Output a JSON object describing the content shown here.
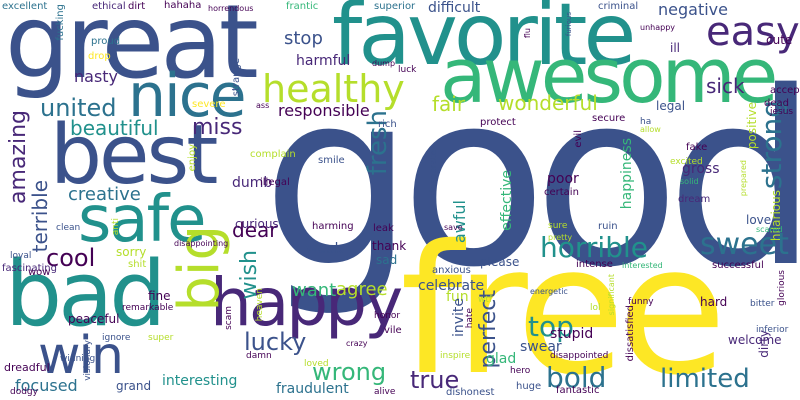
{
  "palette": {
    "navy": "#3b528b",
    "dark_purple": "#440154",
    "purple": "#482878",
    "teal": "#21918c",
    "blue_teal": "#2c728e",
    "green": "#35b779",
    "light_green": "#6ece58",
    "lime": "#b5de2b",
    "yellow": "#fde725"
  },
  "words": [
    {
      "text": "good",
      "color": "#3b528b"
    },
    {
      "text": "free",
      "color": "#fde725"
    },
    {
      "text": "great",
      "color": "#3b528b"
    },
    {
      "text": "favorite",
      "color": "#21918c"
    },
    {
      "text": "awesome",
      "color": "#35b779"
    },
    {
      "text": "best",
      "color": "#3b528b"
    },
    {
      "text": "nice",
      "color": "#2c728e"
    },
    {
      "text": "bad",
      "color": "#21918c"
    },
    {
      "text": "happy",
      "color": "#482878"
    },
    {
      "text": "safe",
      "color": "#21918c"
    },
    {
      "text": "big",
      "color": "#b5de2b"
    },
    {
      "text": "win",
      "color": "#3b528b"
    },
    {
      "text": "easy",
      "color": "#482878"
    },
    {
      "text": "healthy",
      "color": "#b5de2b"
    },
    {
      "text": "sweet",
      "color": "#2c728e"
    },
    {
      "text": "horrible",
      "color": "#21918c"
    },
    {
      "text": "cool",
      "color": "#440154"
    },
    {
      "text": "united",
      "color": "#2c728e"
    },
    {
      "text": "beautiful",
      "color": "#21918c"
    },
    {
      "text": "miss",
      "color": "#482878"
    },
    {
      "text": "amazing",
      "color": "#482878"
    },
    {
      "text": "wonderful",
      "color": "#b5de2b"
    },
    {
      "text": "fair",
      "color": "#b5de2b"
    },
    {
      "text": "limited",
      "color": "#2c728e"
    },
    {
      "text": "bold",
      "color": "#2c728e"
    },
    {
      "text": "top",
      "color": "#21918c"
    },
    {
      "text": "true",
      "color": "#482878"
    },
    {
      "text": "lucky",
      "color": "#3b528b"
    },
    {
      "text": "wrong",
      "color": "#35b779"
    },
    {
      "text": "strong",
      "color": "#2c728e"
    },
    {
      "text": "fresh",
      "color": "#2c728e"
    },
    {
      "text": "wish",
      "color": "#21918c"
    },
    {
      "text": "perfect",
      "color": "#3b528b"
    },
    {
      "text": "creative",
      "color": "#2c728e"
    },
    {
      "text": "dear",
      "color": "#440154"
    },
    {
      "text": "terrible",
      "color": "#3b528b"
    },
    {
      "text": "sick",
      "color": "#482878"
    },
    {
      "text": "stop",
      "color": "#3b528b"
    },
    {
      "text": "negative",
      "color": "#3b528b"
    },
    {
      "text": "nasty",
      "color": "#482878"
    },
    {
      "text": "difficult",
      "color": "#3b528b"
    },
    {
      "text": "want",
      "color": "#35b779"
    },
    {
      "text": "agree",
      "color": "#b5de2b"
    },
    {
      "text": "interesting",
      "color": "#21918c"
    },
    {
      "text": "focused",
      "color": "#2c728e"
    },
    {
      "text": "fraudulent",
      "color": "#2c728e"
    },
    {
      "text": "harmful",
      "color": "#482878"
    },
    {
      "text": "responsible",
      "color": "#440154"
    },
    {
      "text": "celebrate",
      "color": "#3b528b"
    },
    {
      "text": "weak",
      "color": "#3b528b"
    },
    {
      "text": "poor",
      "color": "#440154"
    },
    {
      "text": "awful",
      "color": "#21918c"
    },
    {
      "text": "gross",
      "color": "#482878"
    },
    {
      "text": "happiness",
      "color": "#35b779"
    },
    {
      "text": "positive",
      "color": "#b5de2b"
    },
    {
      "text": "love",
      "color": "#3b528b"
    },
    {
      "text": "fun",
      "color": "#b5de2b"
    },
    {
      "text": "hard",
      "color": "#440154"
    },
    {
      "text": "welcome",
      "color": "#482878"
    },
    {
      "text": "stupid",
      "color": "#440154"
    },
    {
      "text": "swear",
      "color": "#3b528b"
    },
    {
      "text": "glad",
      "color": "#35b779"
    },
    {
      "text": "invite",
      "color": "#3b528b"
    },
    {
      "text": "effective",
      "color": "#35b779"
    },
    {
      "text": "peaceful",
      "color": "#440154"
    },
    {
      "text": "fine",
      "color": "#440154"
    },
    {
      "text": "grand",
      "color": "#3b528b"
    },
    {
      "text": "dumb",
      "color": "#482878"
    },
    {
      "text": "curious",
      "color": "#482878"
    },
    {
      "text": "sorry",
      "color": "#b5de2b"
    },
    {
      "text": "thank",
      "color": "#440154"
    },
    {
      "text": "sad",
      "color": "#2c728e"
    },
    {
      "text": "please",
      "color": "#3b528b"
    },
    {
      "text": "legal",
      "color": "#3b528b"
    },
    {
      "text": "ill",
      "color": "#482878"
    },
    {
      "text": "cute",
      "color": "#440154"
    },
    {
      "text": "proud",
      "color": "#2c728e"
    },
    {
      "text": "excellent",
      "color": "#2c728e"
    },
    {
      "text": "ethical",
      "color": "#482878"
    },
    {
      "text": "dirt",
      "color": "#440154"
    },
    {
      "text": "hahaha",
      "color": "#440154"
    },
    {
      "text": "frantic",
      "color": "#35b779"
    },
    {
      "text": "superior",
      "color": "#2c728e"
    },
    {
      "text": "criminal",
      "color": "#3b528b"
    },
    {
      "text": "fucking",
      "color": "#2c728e"
    },
    {
      "text": "strange",
      "color": "#3b528b"
    },
    {
      "text": "enjoy",
      "color": "#b5de2b"
    },
    {
      "text": "rich",
      "color": "#3b528b"
    },
    {
      "text": "protect",
      "color": "#440154"
    },
    {
      "text": "secure",
      "color": "#440154"
    },
    {
      "text": "fake",
      "color": "#440154"
    },
    {
      "text": "dream",
      "color": "#482878"
    },
    {
      "text": "ruin",
      "color": "#3b528b"
    },
    {
      "text": "certain",
      "color": "#440154"
    },
    {
      "text": "anxious",
      "color": "#3b528b"
    },
    {
      "text": "intense",
      "color": "#440154"
    },
    {
      "text": "successful",
      "color": "#440154"
    },
    {
      "text": "dirty",
      "color": "#482878"
    },
    {
      "text": "hilarious",
      "color": "#b5de2b"
    },
    {
      "text": "accept",
      "color": "#440154"
    },
    {
      "text": "dead",
      "color": "#440154"
    },
    {
      "text": "evil",
      "color": "#440154"
    },
    {
      "text": "leak",
      "color": "#440154"
    },
    {
      "text": "harming",
      "color": "#440154"
    },
    {
      "text": "illegal",
      "color": "#440154"
    },
    {
      "text": "smile",
      "color": "#3b528b"
    },
    {
      "text": "complain",
      "color": "#b5de2b"
    },
    {
      "text": "severe",
      "color": "#fde725"
    },
    {
      "text": "drop",
      "color": "#fde725"
    },
    {
      "text": "fascinating",
      "color": "#482878"
    },
    {
      "text": "loyal",
      "color": "#3b528b"
    },
    {
      "text": "clean",
      "color": "#3b528b"
    },
    {
      "text": "anti",
      "color": "#b5de2b"
    },
    {
      "text": "shit",
      "color": "#b5de2b"
    },
    {
      "text": "wow",
      "color": "#440154"
    },
    {
      "text": "vile",
      "color": "#440154"
    },
    {
      "text": "honor",
      "color": "#440154"
    },
    {
      "text": "huge",
      "color": "#3b528b"
    },
    {
      "text": "hero",
      "color": "#440154"
    },
    {
      "text": "dissatisfied",
      "color": "#440154"
    },
    {
      "text": "dishonest",
      "color": "#3b528b"
    },
    {
      "text": "alive",
      "color": "#440154"
    },
    {
      "text": "fantastic",
      "color": "#440154"
    },
    {
      "text": "disappointed",
      "color": "#440154"
    },
    {
      "text": "inspire",
      "color": "#b5de2b"
    },
    {
      "text": "loved",
      "color": "#b5de2b"
    },
    {
      "text": "damn",
      "color": "#440154"
    },
    {
      "text": "scam",
      "color": "#440154"
    },
    {
      "text": "super",
      "color": "#b5de2b"
    },
    {
      "text": "dreadful",
      "color": "#440154"
    },
    {
      "text": "visionary",
      "color": "#3b528b"
    },
    {
      "text": "ignore",
      "color": "#3b528b"
    },
    {
      "text": "remarkable",
      "color": "#440154"
    },
    {
      "text": "heaven",
      "color": "#b5de2b"
    },
    {
      "text": "dodgy",
      "color": "#440154"
    },
    {
      "text": "winning",
      "color": "#3b528b"
    },
    {
      "text": "disappointing",
      "color": "#440154"
    },
    {
      "text": "hate",
      "color": "#440154"
    },
    {
      "text": "wtf",
      "color": "#b5de2b"
    },
    {
      "text": "funny",
      "color": "#440154"
    },
    {
      "text": "bitter",
      "color": "#3b528b"
    },
    {
      "text": "inferior",
      "color": "#3b528b"
    },
    {
      "text": "glorious",
      "color": "#440154"
    },
    {
      "text": "jesus",
      "color": "#440154"
    },
    {
      "text": "lol",
      "color": "#b5de2b"
    },
    {
      "text": "significant",
      "color": "#b5de2b"
    },
    {
      "text": "energetic",
      "color": "#3b528b"
    },
    {
      "text": "interested",
      "color": "#35b779"
    },
    {
      "text": "scared",
      "color": "#35b779"
    },
    {
      "text": "desperate",
      "color": "#3b528b"
    },
    {
      "text": "save",
      "color": "#440154"
    },
    {
      "text": "sure",
      "color": "#b5de2b"
    },
    {
      "text": "pretty",
      "color": "#b5de2b"
    },
    {
      "text": "excited",
      "color": "#b5de2b"
    },
    {
      "text": "solid",
      "color": "#35b779"
    },
    {
      "text": "prepared",
      "color": "#b5de2b"
    },
    {
      "text": "allow",
      "color": "#b5de2b"
    },
    {
      "text": "ha",
      "color": "#3b528b"
    },
    {
      "text": "crazy",
      "color": "#440154"
    },
    {
      "text": "luck",
      "color": "#440154"
    },
    {
      "text": "dump",
      "color": "#440154"
    },
    {
      "text": "ass",
      "color": "#440154"
    },
    {
      "text": "horrendous",
      "color": "#440154"
    },
    {
      "text": "flu",
      "color": "#440154"
    },
    {
      "text": "furious",
      "color": "#3b528b"
    },
    {
      "text": "unhappy",
      "color": "#440154"
    }
  ]
}
